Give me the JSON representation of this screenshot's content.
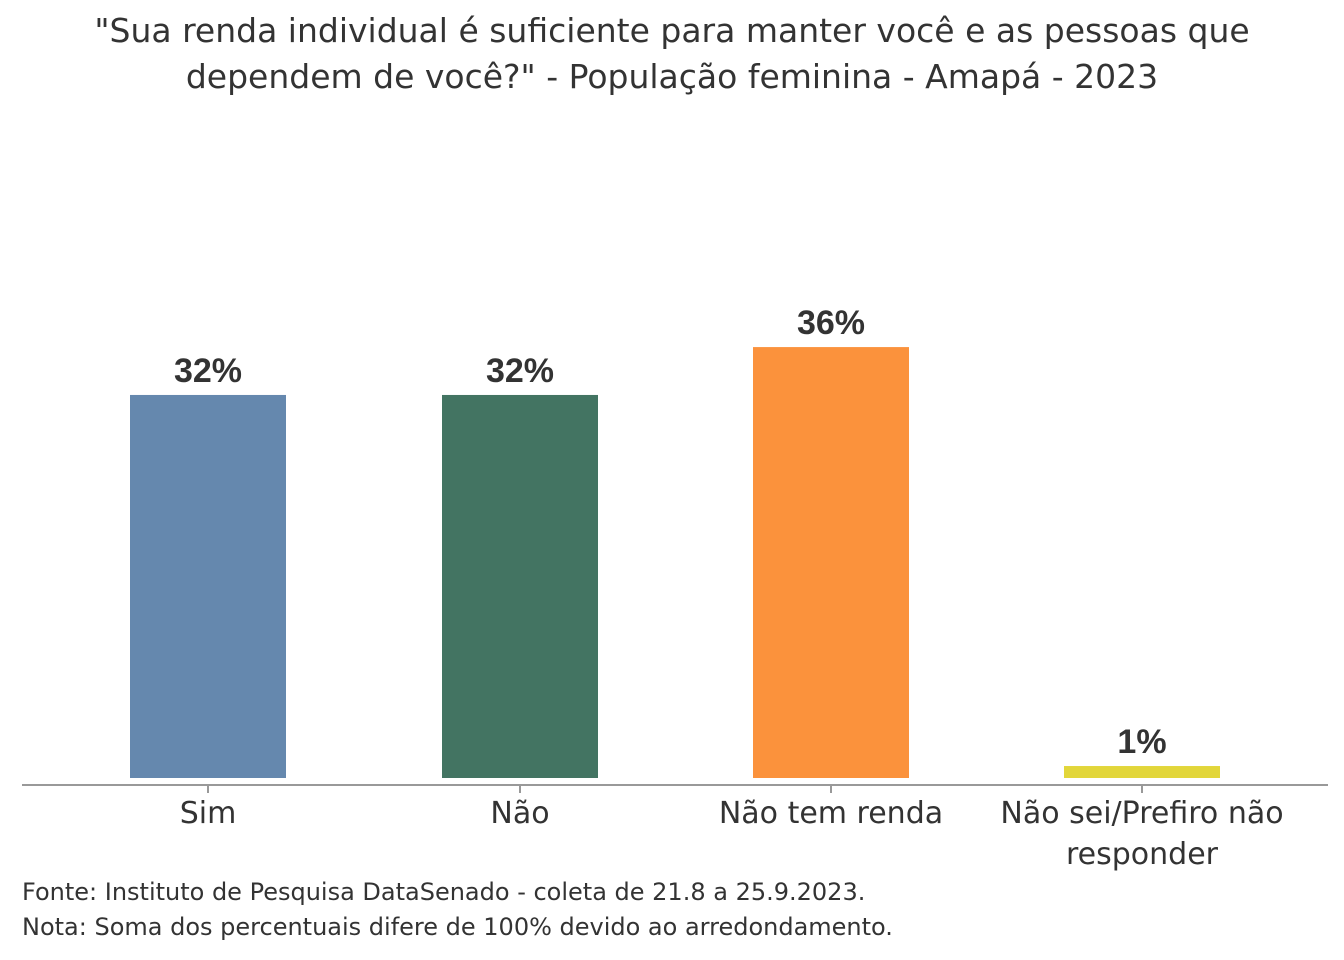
{
  "chart_data": {
    "type": "bar",
    "title": "\"Sua renda individual é suficiente para manter você e as pessoas que dependem de você?\" - População feminina - Amapá - 2023",
    "categories": [
      "Sim",
      "Não",
      "Não tem renda",
      "Não sei/Prefiro não responder"
    ],
    "values": [
      32,
      32,
      36,
      1
    ],
    "labels": [
      "32%",
      "32%",
      "36%",
      "1%"
    ],
    "colors": [
      "#6588ae",
      "#437462",
      "#fb923c",
      "#e2d63a"
    ],
    "xlabel": "",
    "ylabel": "",
    "ylim": [
      0,
      40
    ],
    "grid": false
  },
  "footer": {
    "source": "Fonte: Instituto de Pesquisa DataSenado - coleta de 21.8 a 25.9.2023.",
    "note": "Nota: Soma dos percentuais difere de 100% devido ao arredondamento."
  }
}
